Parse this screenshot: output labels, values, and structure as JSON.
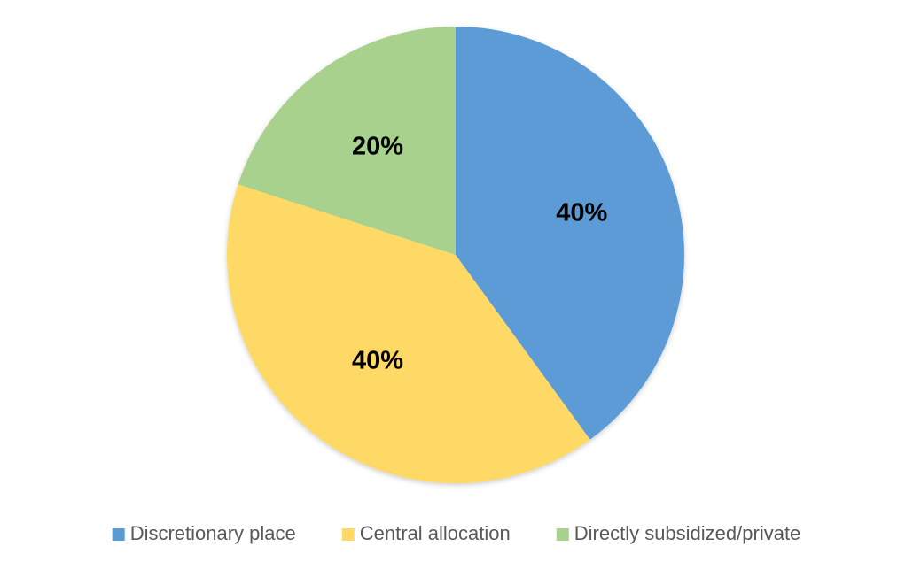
{
  "chart_data": {
    "type": "pie",
    "categories": [
      "Discretionary place",
      "Central allocation",
      "Directly subsidized/private"
    ],
    "values": [
      40,
      40,
      20
    ],
    "value_labels": [
      "40%",
      "40%",
      "20%"
    ],
    "colors": [
      "#5b9bd5",
      "#ffd966",
      "#a9d18e"
    ],
    "legend": "bottom"
  }
}
